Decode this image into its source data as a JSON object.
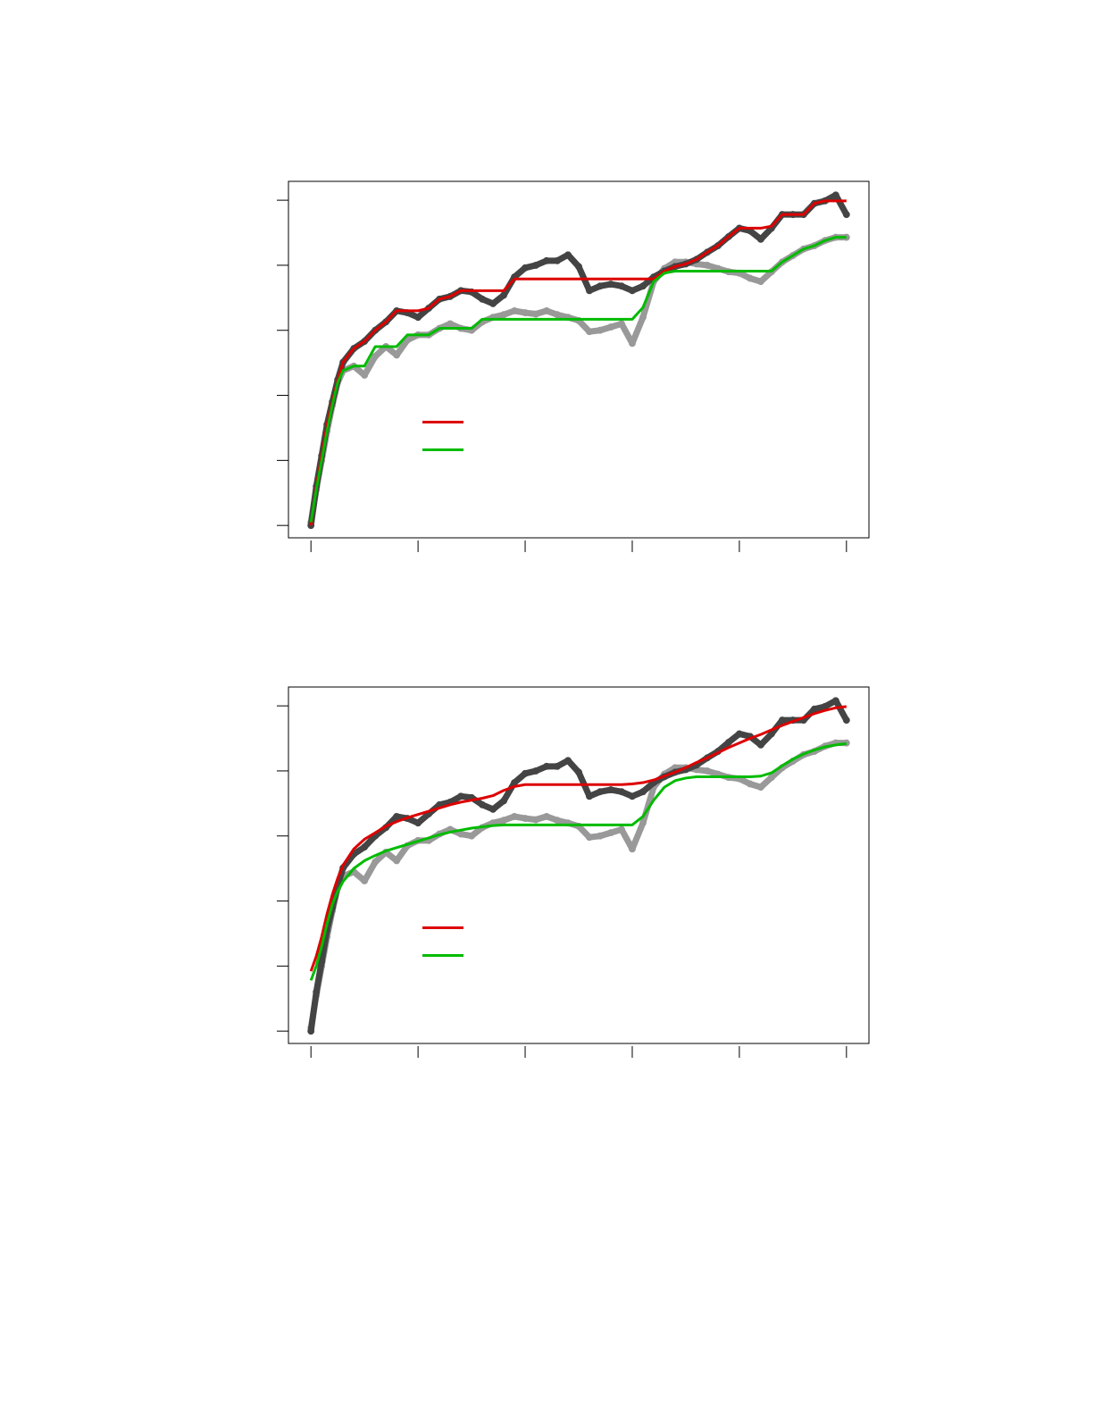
{
  "chart_data": [
    {
      "type": "line",
      "x": [
        0,
        0.05,
        0.1,
        0.15,
        0.2,
        0.25,
        0.3,
        0.4,
        0.5,
        0.6,
        0.7,
        0.8,
        0.9,
        1.0,
        1.1,
        1.2,
        1.3,
        1.4,
        1.5,
        1.6,
        1.7,
        1.8,
        1.9,
        2.0,
        2.1,
        2.2,
        2.3,
        2.4,
        2.5,
        2.6,
        2.7,
        2.8,
        2.9,
        3.0,
        3.1,
        3.2,
        3.3,
        3.4,
        3.5,
        3.6,
        3.7,
        3.8,
        3.9,
        4.0,
        4.1,
        4.2,
        4.3,
        4.4,
        4.5,
        4.6,
        4.7,
        4.8,
        4.9,
        5.0
      ],
      "xlim": [
        -0.21,
        5.21
      ],
      "ylim": [
        -0.19,
        5.29
      ],
      "xticks": [
        0,
        1,
        2,
        3,
        4,
        5
      ],
      "yticks": [
        0,
        1,
        2,
        3,
        4,
        5
      ],
      "legend": "center-left",
      "series": [
        {
          "color": "#999999",
          "style": "points",
          "values": [
            0.05,
            0.55,
            1.0,
            1.45,
            1.85,
            2.2,
            2.38,
            2.45,
            2.31,
            2.6,
            2.75,
            2.62,
            2.85,
            2.93,
            2.93,
            3.03,
            3.1,
            3.03,
            3.0,
            3.13,
            3.2,
            3.24,
            3.3,
            3.27,
            3.25,
            3.3,
            3.24,
            3.2,
            3.15,
            2.98,
            3.0,
            3.05,
            3.1,
            2.8,
            3.2,
            3.75,
            3.95,
            4.05,
            4.05,
            4.02,
            4.0,
            3.95,
            3.9,
            3.88,
            3.8,
            3.75,
            3.9,
            4.05,
            4.15,
            4.25,
            4.3,
            4.38,
            4.43,
            4.43
          ]
        },
        {
          "color": "#444444",
          "style": "points",
          "values": [
            0.0,
            0.6,
            1.07,
            1.55,
            1.9,
            2.24,
            2.51,
            2.72,
            2.83,
            3.0,
            3.13,
            3.3,
            3.27,
            3.2,
            3.34,
            3.48,
            3.52,
            3.61,
            3.59,
            3.48,
            3.41,
            3.54,
            3.82,
            3.96,
            4.0,
            4.07,
            4.07,
            4.16,
            3.98,
            3.61,
            3.68,
            3.71,
            3.68,
            3.61,
            3.68,
            3.82,
            3.91,
            3.98,
            4.02,
            4.09,
            4.2,
            4.3,
            4.44,
            4.57,
            4.53,
            4.4,
            4.57,
            4.78,
            4.78,
            4.78,
            4.95,
            4.99,
            5.08,
            4.78
          ]
        },
        {
          "color": "#dd0000",
          "style": "line",
          "values": [
            0.0,
            0.6,
            1.07,
            1.55,
            1.9,
            2.24,
            2.51,
            2.72,
            2.83,
            3.0,
            3.13,
            3.3,
            3.3,
            3.3,
            3.34,
            3.48,
            3.52,
            3.61,
            3.61,
            3.61,
            3.61,
            3.61,
            3.79,
            3.79,
            3.79,
            3.79,
            3.79,
            3.79,
            3.79,
            3.79,
            3.79,
            3.79,
            3.79,
            3.79,
            3.79,
            3.79,
            3.91,
            3.98,
            4.02,
            4.09,
            4.2,
            4.3,
            4.44,
            4.57,
            4.57,
            4.57,
            4.6,
            4.78,
            4.78,
            4.78,
            4.95,
            4.99,
            4.99,
            4.99
          ]
        },
        {
          "color": "#00bb00",
          "style": "line",
          "values": [
            0.05,
            0.55,
            1.0,
            1.45,
            1.85,
            2.2,
            2.38,
            2.45,
            2.45,
            2.75,
            2.75,
            2.75,
            2.93,
            2.93,
            2.93,
            3.03,
            3.03,
            3.03,
            3.03,
            3.17,
            3.17,
            3.17,
            3.17,
            3.17,
            3.17,
            3.17,
            3.17,
            3.17,
            3.17,
            3.17,
            3.17,
            3.17,
            3.17,
            3.17,
            3.35,
            3.75,
            3.88,
            3.91,
            3.91,
            3.91,
            3.91,
            3.91,
            3.91,
            3.91,
            3.91,
            3.91,
            3.91,
            4.05,
            4.15,
            4.25,
            4.3,
            4.38,
            4.43,
            4.43
          ]
        }
      ]
    },
    {
      "type": "line",
      "x": [
        0,
        0.05,
        0.1,
        0.15,
        0.2,
        0.25,
        0.3,
        0.4,
        0.5,
        0.6,
        0.7,
        0.8,
        0.9,
        1.0,
        1.1,
        1.2,
        1.3,
        1.4,
        1.5,
        1.6,
        1.7,
        1.8,
        1.9,
        2.0,
        2.1,
        2.2,
        2.3,
        2.4,
        2.5,
        2.6,
        2.7,
        2.8,
        2.9,
        3.0,
        3.1,
        3.2,
        3.3,
        3.4,
        3.5,
        3.6,
        3.7,
        3.8,
        3.9,
        4.0,
        4.1,
        4.2,
        4.3,
        4.4,
        4.5,
        4.6,
        4.7,
        4.8,
        4.9,
        5.0
      ],
      "xlim": [
        -0.21,
        5.21
      ],
      "ylim": [
        -0.19,
        5.29
      ],
      "xticks": [
        0,
        1,
        2,
        3,
        4,
        5
      ],
      "yticks": [
        0,
        1,
        2,
        3,
        4,
        5
      ],
      "legend": "center-left",
      "series": [
        {
          "color": "#999999",
          "style": "points",
          "values": [
            0.05,
            0.55,
            1.0,
            1.45,
            1.85,
            2.2,
            2.38,
            2.45,
            2.31,
            2.6,
            2.75,
            2.62,
            2.85,
            2.93,
            2.93,
            3.03,
            3.1,
            3.03,
            3.0,
            3.13,
            3.2,
            3.24,
            3.3,
            3.27,
            3.25,
            3.3,
            3.24,
            3.2,
            3.15,
            2.98,
            3.0,
            3.05,
            3.1,
            2.8,
            3.2,
            3.75,
            3.95,
            4.05,
            4.05,
            4.02,
            4.0,
            3.95,
            3.9,
            3.88,
            3.8,
            3.75,
            3.9,
            4.05,
            4.15,
            4.25,
            4.3,
            4.38,
            4.43,
            4.43
          ]
        },
        {
          "color": "#444444",
          "style": "points",
          "values": [
            0.0,
            0.6,
            1.07,
            1.55,
            1.9,
            2.24,
            2.51,
            2.72,
            2.83,
            3.0,
            3.13,
            3.3,
            3.27,
            3.2,
            3.34,
            3.48,
            3.52,
            3.61,
            3.59,
            3.48,
            3.41,
            3.54,
            3.82,
            3.96,
            4.0,
            4.07,
            4.07,
            4.16,
            3.98,
            3.61,
            3.68,
            3.71,
            3.68,
            3.61,
            3.68,
            3.82,
            3.91,
            3.98,
            4.02,
            4.09,
            4.2,
            4.3,
            4.44,
            4.57,
            4.53,
            4.4,
            4.57,
            4.78,
            4.78,
            4.78,
            4.95,
            4.99,
            5.08,
            4.78
          ]
        },
        {
          "color": "#dd0000",
          "style": "line",
          "values": [
            0.92,
            1.15,
            1.45,
            1.8,
            2.1,
            2.35,
            2.55,
            2.8,
            2.95,
            3.05,
            3.15,
            3.22,
            3.28,
            3.33,
            3.38,
            3.43,
            3.48,
            3.52,
            3.55,
            3.58,
            3.62,
            3.7,
            3.76,
            3.79,
            3.79,
            3.79,
            3.79,
            3.79,
            3.79,
            3.79,
            3.79,
            3.79,
            3.79,
            3.8,
            3.82,
            3.86,
            3.92,
            3.98,
            4.05,
            4.13,
            4.2,
            4.28,
            4.36,
            4.43,
            4.5,
            4.56,
            4.63,
            4.7,
            4.76,
            4.82,
            4.88,
            4.93,
            4.97,
            4.99
          ]
        },
        {
          "color": "#00bb00",
          "style": "line",
          "values": [
            0.78,
            1.0,
            1.3,
            1.65,
            1.95,
            2.15,
            2.3,
            2.5,
            2.62,
            2.7,
            2.77,
            2.82,
            2.87,
            2.92,
            2.97,
            3.02,
            3.06,
            3.09,
            3.12,
            3.14,
            3.16,
            3.17,
            3.17,
            3.17,
            3.17,
            3.17,
            3.17,
            3.17,
            3.17,
            3.17,
            3.17,
            3.17,
            3.17,
            3.17,
            3.3,
            3.55,
            3.75,
            3.85,
            3.89,
            3.91,
            3.91,
            3.91,
            3.91,
            3.91,
            3.91,
            3.92,
            3.97,
            4.08,
            4.18,
            4.26,
            4.32,
            4.37,
            4.4,
            4.42
          ]
        }
      ]
    }
  ]
}
